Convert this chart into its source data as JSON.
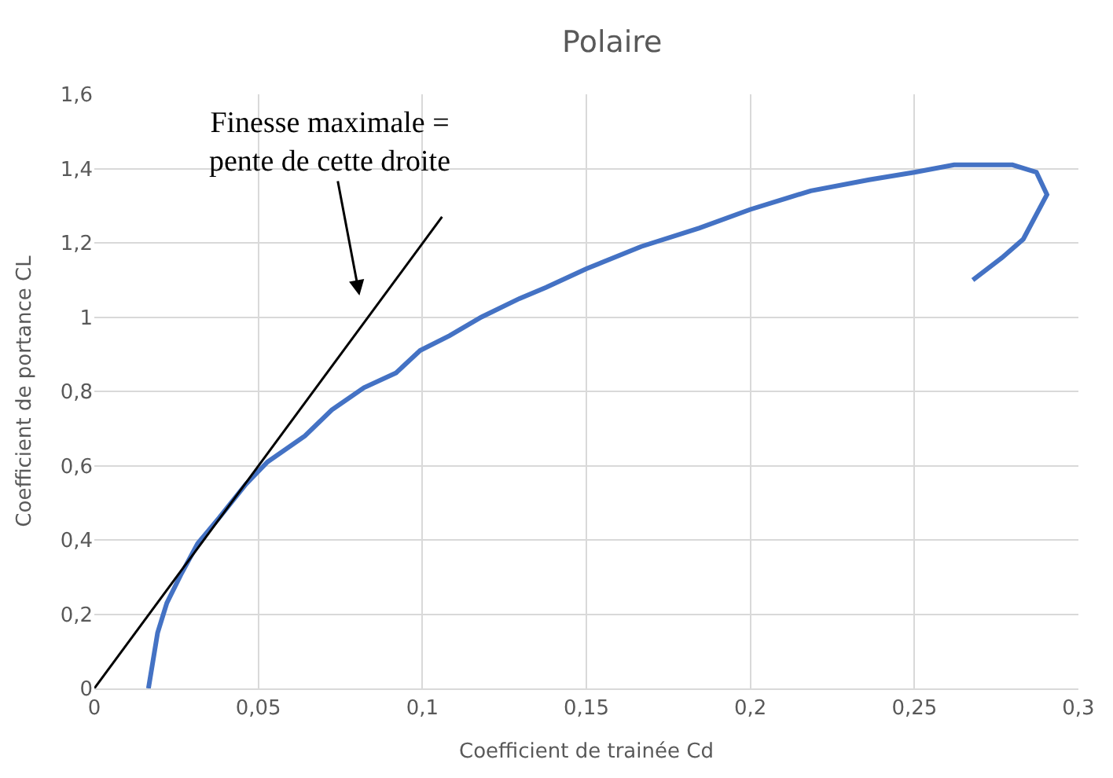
{
  "chart_data": {
    "type": "line",
    "title": "Polaire",
    "xlabel": "Coefficient de trainée Cd",
    "ylabel": "Coefficient de portance CL",
    "xlim": [
      0,
      0.3
    ],
    "ylim": [
      0,
      1.6
    ],
    "xticks": [
      0,
      {
        "value": 0.05,
        "label": "0,05"
      },
      {
        "value": 0.1,
        "label": "0,1"
      },
      {
        "value": 0.15,
        "label": "0,15"
      },
      {
        "value": 0.2,
        "label": "0,2"
      },
      {
        "value": 0.25,
        "label": "0,25"
      },
      {
        "value": 0.3,
        "label": "0,3"
      }
    ],
    "yticks": [
      0,
      {
        "value": 0.2,
        "label": "0,2"
      },
      {
        "value": 0.4,
        "label": "0,4"
      },
      {
        "value": 0.6,
        "label": "0,6"
      },
      {
        "value": 0.8,
        "label": "0,8"
      },
      1,
      {
        "value": 1.2,
        "label": "1,2"
      },
      {
        "value": 1.4,
        "label": "1,4"
      },
      {
        "value": 1.6,
        "label": "1,6"
      }
    ],
    "grid": true,
    "marker": "none",
    "line_style": "solid",
    "series": [
      {
        "color": "#4472c4",
        "x": [
          0.0165,
          0.0193,
          0.0221,
          0.0266,
          0.0315,
          0.0381,
          0.0462,
          0.0528,
          0.0642,
          0.0724,
          0.0822,
          0.092,
          0.0993,
          0.1083,
          0.118,
          0.1296,
          0.1377,
          0.15,
          0.1667,
          0.1845,
          0.2,
          0.2184,
          0.2362,
          0.25,
          0.2621,
          0.2799,
          0.2872,
          0.2904,
          0.2832,
          0.2767,
          0.2678
        ],
        "values": [
          0,
          0.15,
          0.23,
          0.31,
          0.39,
          0.46,
          0.55,
          0.61,
          0.68,
          0.75,
          0.81,
          0.85,
          0.91,
          0.95,
          1.0,
          1.05,
          1.08,
          1.13,
          1.19,
          1.24,
          1.29,
          1.34,
          1.37,
          1.39,
          1.41,
          1.41,
          1.39,
          1.33,
          1.21,
          1.16,
          1.1
        ]
      },
      {
        "color": "#000000",
        "x": [
          0,
          0.106
        ],
        "values": [
          0,
          1.27
        ]
      }
    ],
    "annotations": [
      "Finesse maximale =\npente de cette droite"
    ]
  }
}
